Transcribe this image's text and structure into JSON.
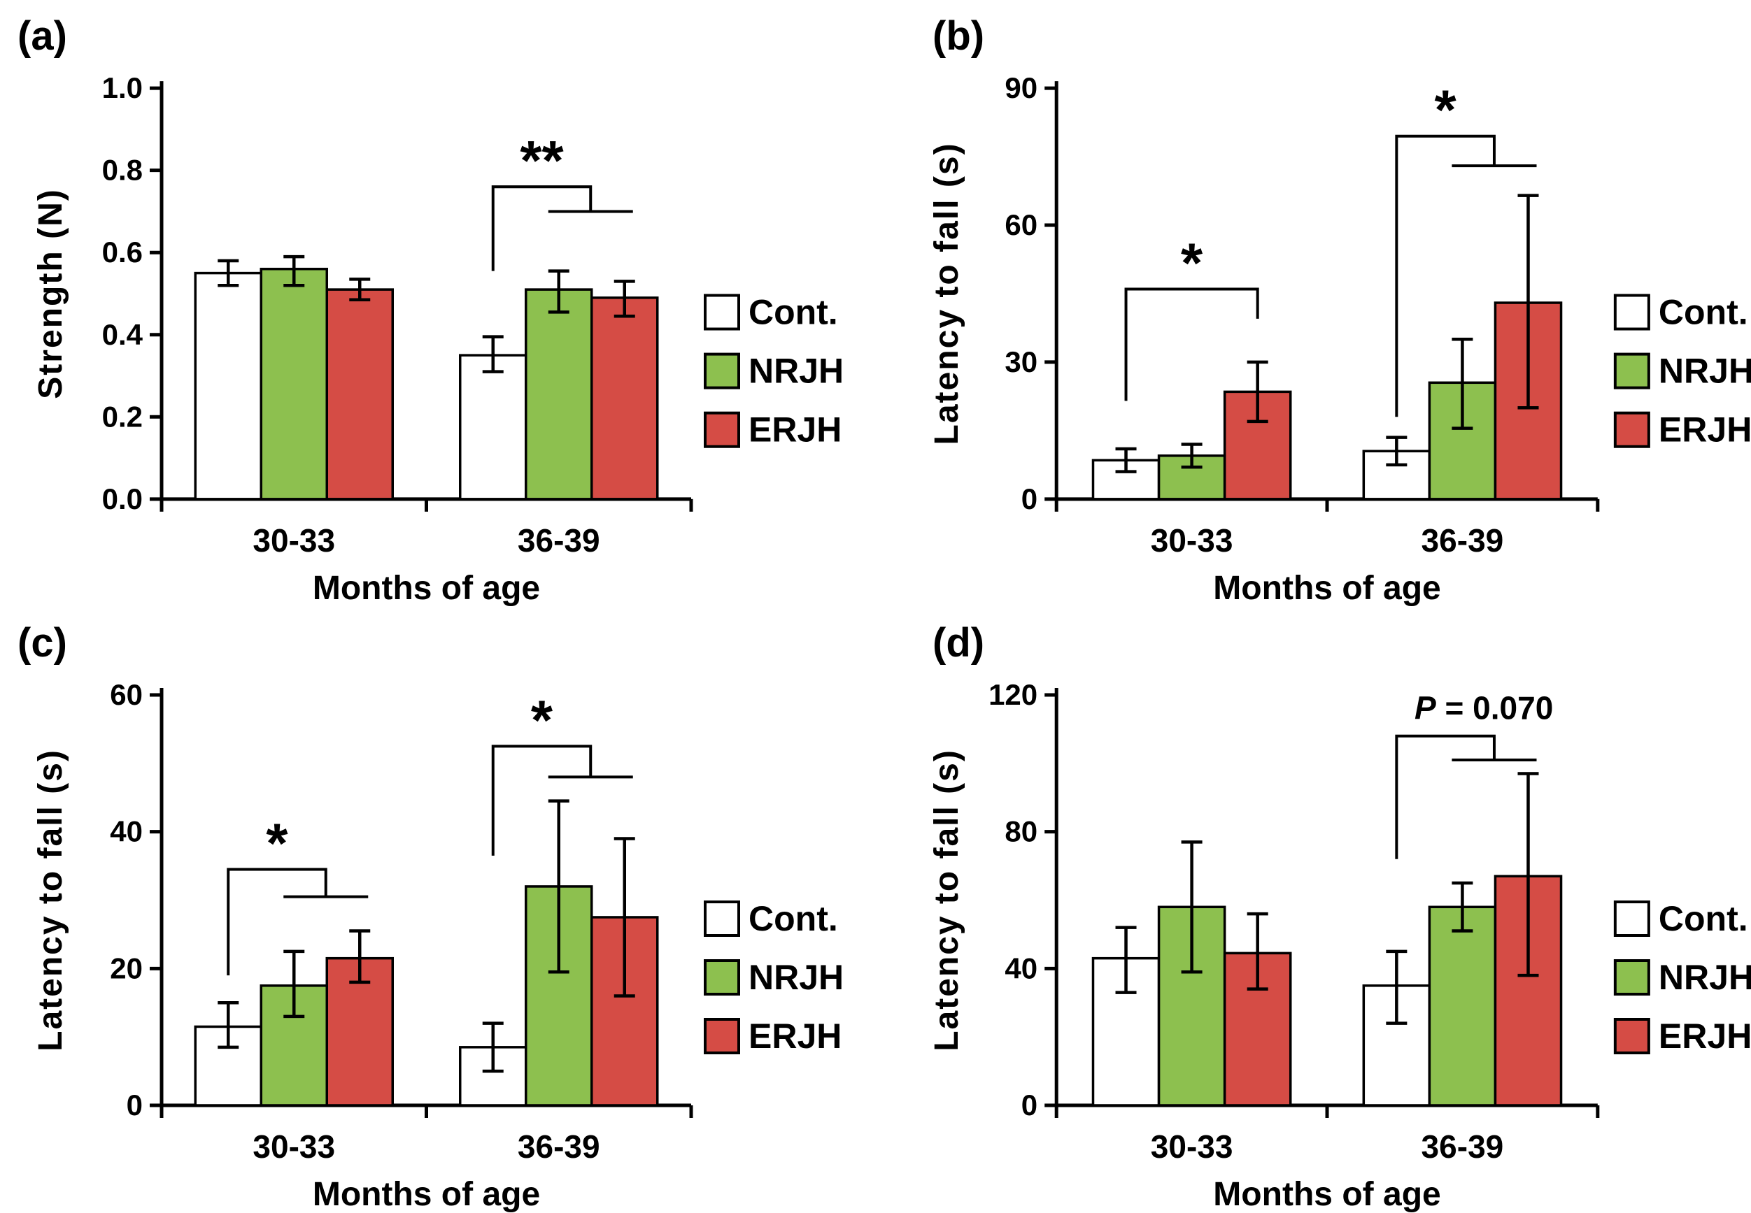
{
  "figure": {
    "background": "#ffffff"
  },
  "colors": {
    "cont": "#ffffff",
    "nrjh": "#8DC04F",
    "erjh": "#D54C45",
    "ink": "#000000"
  },
  "legend": {
    "items": [
      {
        "key": "cont",
        "label": "Cont."
      },
      {
        "key": "nrjh",
        "label": "NRJH"
      },
      {
        "key": "erjh",
        "label": "ERJH"
      }
    ]
  },
  "chart_data": [
    {
      "type": "bar",
      "panel_label": "(a)",
      "ylabel": "Strength (N)",
      "xlabel": "Months of age",
      "ylim": [
        0,
        1.0
      ],
      "grid": false,
      "legend_position": "right",
      "legend_visible": true,
      "yticks": [
        {
          "v": 0,
          "label": "0.0"
        },
        {
          "v": 0.2,
          "label": "0.2"
        },
        {
          "v": 0.4,
          "label": "0.4"
        },
        {
          "v": 0.6,
          "label": "0.6"
        },
        {
          "v": 0.8,
          "label": "0.8"
        },
        {
          "v": 1.0,
          "label": "1.0"
        }
      ],
      "categories": [
        "30-33",
        "36-39"
      ],
      "series": [
        {
          "name": "Cont.",
          "color": "cont",
          "values": [
            0.55,
            0.35
          ],
          "err_minus": [
            0.03,
            0.04
          ],
          "err_plus": [
            0.03,
            0.045
          ]
        },
        {
          "name": "NRJH",
          "color": "nrjh",
          "values": [
            0.56,
            0.51
          ],
          "err_minus": [
            0.04,
            0.055
          ],
          "err_plus": [
            0.03,
            0.045
          ]
        },
        {
          "name": "ERJH",
          "color": "erjh",
          "values": [
            0.51,
            0.49
          ],
          "err_minus": [
            0.025,
            0.045
          ],
          "err_plus": [
            0.025,
            0.04
          ]
        }
      ],
      "annotations": [
        {
          "group": 1,
          "style": "joint",
          "label": "**",
          "label_style": "stars",
          "main_y": 0.76,
          "tail_y": 0.555,
          "joint_y": 0.7
        }
      ]
    },
    {
      "type": "bar",
      "panel_label": "(b)",
      "ylabel": "Latency to fall (s)",
      "xlabel": "Months of age",
      "ylim": [
        0,
        90
      ],
      "grid": false,
      "legend_position": "right",
      "legend_visible": true,
      "yticks": [
        {
          "v": 0,
          "label": "0"
        },
        {
          "v": 30,
          "label": "30"
        },
        {
          "v": 60,
          "label": "60"
        },
        {
          "v": 90,
          "label": "90"
        }
      ],
      "categories": [
        "30-33",
        "36-39"
      ],
      "series": [
        {
          "name": "Cont.",
          "color": "cont",
          "values": [
            8.5,
            10.5
          ],
          "err_minus": [
            2.5,
            3
          ],
          "err_plus": [
            2.5,
            3
          ]
        },
        {
          "name": "NRJH",
          "color": "nrjh",
          "values": [
            9.5,
            25.5
          ],
          "err_minus": [
            2.5,
            10
          ],
          "err_plus": [
            2.5,
            9.5
          ]
        },
        {
          "name": "ERJH",
          "color": "erjh",
          "values": [
            23.5,
            43
          ],
          "err_minus": [
            6.5,
            23
          ],
          "err_plus": [
            6.5,
            23.5
          ]
        }
      ],
      "annotations": [
        {
          "group": 0,
          "style": "simple",
          "label": "*",
          "label_style": "stars",
          "main_y": 46,
          "tail_y": 21.5,
          "right_tail_y": 39.5
        },
        {
          "group": 1,
          "style": "joint",
          "label": "*",
          "label_style": "stars",
          "main_y": 79.5,
          "tail_y": 18,
          "joint_y": 73
        }
      ]
    },
    {
      "type": "bar",
      "panel_label": "(c)",
      "ylabel": "Latency to fall (s)",
      "xlabel": "Months of age",
      "ylim": [
        0,
        60
      ],
      "grid": false,
      "legend_position": "right",
      "legend_visible": true,
      "yticks": [
        {
          "v": 0,
          "label": "0"
        },
        {
          "v": 20,
          "label": "20"
        },
        {
          "v": 40,
          "label": "40"
        },
        {
          "v": 60,
          "label": "60"
        }
      ],
      "categories": [
        "30-33",
        "36-39"
      ],
      "series": [
        {
          "name": "Cont.",
          "color": "cont",
          "values": [
            11.5,
            8.5
          ],
          "err_minus": [
            3,
            3.5
          ],
          "err_plus": [
            3.5,
            3.5
          ]
        },
        {
          "name": "NRJH",
          "color": "nrjh",
          "values": [
            17.5,
            32
          ],
          "err_minus": [
            4.5,
            12.5
          ],
          "err_plus": [
            5,
            12.5
          ]
        },
        {
          "name": "ERJH",
          "color": "erjh",
          "values": [
            21.5,
            27.5
          ],
          "err_minus": [
            3.5,
            11.5
          ],
          "err_plus": [
            4,
            11.5
          ]
        }
      ],
      "annotations": [
        {
          "group": 0,
          "style": "joint",
          "label": "*",
          "label_style": "stars",
          "main_y": 34.5,
          "tail_y": 19,
          "joint_y": 30.5
        },
        {
          "group": 1,
          "style": "joint",
          "label": "*",
          "label_style": "stars",
          "main_y": 52.5,
          "tail_y": 36.5,
          "joint_y": 48
        }
      ]
    },
    {
      "type": "bar",
      "panel_label": "(d)",
      "ylabel": "Latency to fall (s)",
      "xlabel": "Months of age",
      "ylim": [
        0,
        120
      ],
      "grid": false,
      "legend_position": "right",
      "legend_visible": true,
      "yticks": [
        {
          "v": 0,
          "label": "0"
        },
        {
          "v": 40,
          "label": "40"
        },
        {
          "v": 80,
          "label": "80"
        },
        {
          "v": 120,
          "label": "120"
        }
      ],
      "categories": [
        "30-33",
        "36-39"
      ],
      "series": [
        {
          "name": "Cont.",
          "color": "cont",
          "values": [
            43,
            35
          ],
          "err_minus": [
            10,
            11
          ],
          "err_plus": [
            9,
            10
          ]
        },
        {
          "name": "NRJH",
          "color": "nrjh",
          "values": [
            58,
            58
          ],
          "err_minus": [
            19,
            7
          ],
          "err_plus": [
            19,
            7
          ]
        },
        {
          "name": "ERJH",
          "color": "erjh",
          "values": [
            44.5,
            67
          ],
          "err_minus": [
            10.5,
            29
          ],
          "err_plus": [
            11.5,
            30
          ]
        }
      ],
      "annotations": [
        {
          "group": 1,
          "style": "joint",
          "label": "P = 0.070",
          "label_style": "pvalue",
          "main_y": 108,
          "tail_y": 72,
          "joint_y": 101
        }
      ]
    }
  ]
}
